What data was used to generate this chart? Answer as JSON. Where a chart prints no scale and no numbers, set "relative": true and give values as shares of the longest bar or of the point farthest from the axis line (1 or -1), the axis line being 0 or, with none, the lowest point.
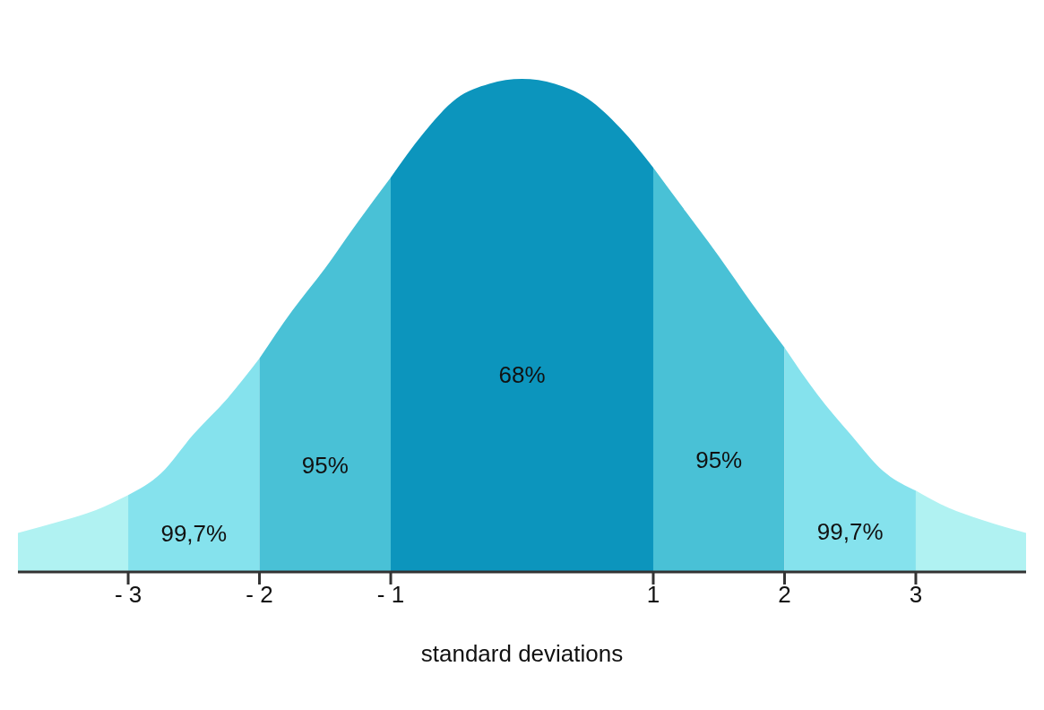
{
  "chart_data": {
    "type": "area",
    "relative": true,
    "xlabel": "standard deviations",
    "xlim": [
      -3.84,
      3.84
    ],
    "xticks": [
      {
        "value": -3,
        "label": "- 3"
      },
      {
        "value": -2,
        "label": "- 2"
      },
      {
        "value": -1,
        "label": "- 1"
      },
      {
        "value": 1,
        "label": "1"
      },
      {
        "value": 2,
        "label": "2"
      },
      {
        "value": 3,
        "label": "3"
      }
    ],
    "series": [
      {
        "color": "#b0f2f2",
        "x": [
          -3.84,
          -3.5,
          -3.25,
          -3
        ],
        "values": [
          0.079,
          0.104,
          0.125,
          0.156
        ]
      },
      {
        "name": "99,7%",
        "color": "#85e2ed",
        "x": [
          -3,
          -2.75,
          -2.5,
          -2.25,
          -2
        ],
        "values": [
          0.156,
          0.2,
          0.28,
          0.35,
          0.433
        ]
      },
      {
        "name": "95%",
        "color": "#49c1d6",
        "x": [
          -2,
          -1.75,
          -1.5,
          -1.25,
          -1
        ],
        "values": [
          0.433,
          0.53,
          0.616,
          0.71,
          0.8
        ]
      },
      {
        "name": "68%",
        "color": "#0c95bd",
        "x": [
          -1,
          -0.75,
          -0.5,
          -0.25,
          0,
          0.25,
          0.5,
          0.75,
          1
        ],
        "values": [
          0.8,
          0.89,
          0.96,
          0.99,
          1,
          0.99,
          0.96,
          0.9,
          0.82
        ]
      },
      {
        "name": "95%",
        "color": "#49c1d6",
        "x": [
          1,
          1.25,
          1.5,
          1.75,
          2
        ],
        "values": [
          0.82,
          0.73,
          0.64,
          0.545,
          0.455
        ]
      },
      {
        "name": "99,7%",
        "color": "#85e2ed",
        "x": [
          2,
          2.25,
          2.5,
          2.75,
          3
        ],
        "values": [
          0.455,
          0.36,
          0.28,
          0.205,
          0.165
        ]
      },
      {
        "color": "#b0f2f2",
        "x": [
          3,
          3.25,
          3.5,
          3.84
        ],
        "values": [
          0.165,
          0.13,
          0.106,
          0.079
        ]
      }
    ],
    "grid": false,
    "legend": false
  }
}
